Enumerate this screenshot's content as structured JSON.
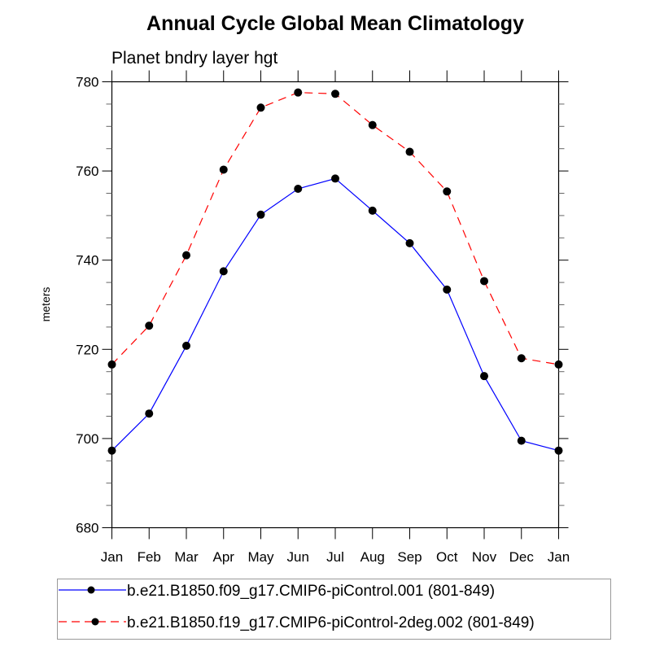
{
  "chart_data": {
    "type": "line",
    "title": "Annual Cycle Global Mean Climatology",
    "subtitle": "Planet bndry layer hgt",
    "xlabel": "",
    "ylabel": "meters",
    "categories": [
      "Jan",
      "Feb",
      "Mar",
      "Apr",
      "May",
      "Jun",
      "Jul",
      "Aug",
      "Sep",
      "Oct",
      "Nov",
      "Dec",
      "Jan"
    ],
    "ylim": [
      680,
      780
    ],
    "yticks": [
      680,
      700,
      720,
      740,
      760,
      780
    ],
    "ytick_labels": [
      "680",
      "700",
      "720",
      "740",
      "760",
      "780"
    ],
    "y_minor_step": 5,
    "grid": false,
    "legend_position": "bottom",
    "series": [
      {
        "name": "b.e21.B1850.f09_g17.CMIP6-piControl.001 (801-849)",
        "color": "#0000ff",
        "dash": "solid",
        "marker": "filled-circle",
        "values": [
          697.3,
          705.6,
          720.8,
          737.5,
          750.2,
          756.0,
          758.3,
          751.1,
          743.8,
          733.4,
          714.0,
          699.5,
          697.3
        ]
      },
      {
        "name": "b.e21.B1850.f19_g17.CMIP6-piControl-2deg.002 (801-849)",
        "color": "#ff0000",
        "dash": "dashed",
        "marker": "filled-circle",
        "values": [
          716.6,
          725.3,
          741.1,
          760.3,
          774.2,
          777.6,
          777.3,
          770.3,
          764.3,
          755.4,
          735.3,
          718.0,
          716.6
        ]
      }
    ]
  }
}
